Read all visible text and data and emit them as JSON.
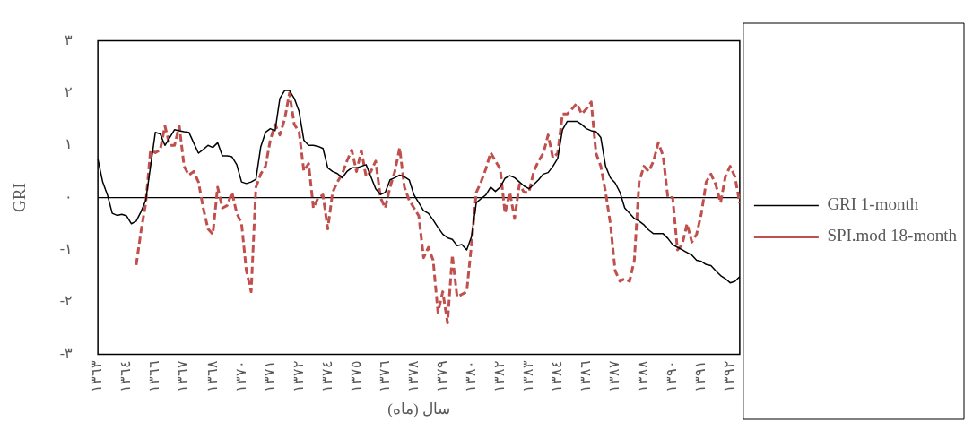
{
  "chart_data": {
    "type": "line",
    "xlabel": "سال (ماه)",
    "ylabel": "GRI",
    "categories": [
      "١٣٦٣",
      null,
      null,
      null,
      null,
      null,
      "١٣٦٤",
      null,
      null,
      null,
      null,
      null,
      "١٣٦٦",
      null,
      null,
      null,
      null,
      null,
      "١٣٦٧",
      null,
      null,
      null,
      null,
      null,
      "١٣٦٨",
      null,
      null,
      null,
      null,
      null,
      "١٣٧٠",
      null,
      null,
      null,
      null,
      null,
      "١٣٧١",
      null,
      null,
      null,
      null,
      null,
      "١٣٧٢",
      null,
      null,
      null,
      null,
      null,
      "١٣٧٤",
      null,
      null,
      null,
      null,
      null,
      "١٣٧٥",
      null,
      null,
      null,
      null,
      null,
      "١٣٧٦",
      null,
      null,
      null,
      null,
      null,
      "١٣٧٨",
      null,
      null,
      null,
      null,
      null,
      "١٣٧٩",
      null,
      null,
      null,
      null,
      null,
      "١٣٨٠",
      null,
      null,
      null,
      null,
      null,
      "١٣٨٢",
      null,
      null,
      null,
      null,
      null,
      "١٣٨٣",
      null,
      null,
      null,
      null,
      null,
      "١٣٨٤",
      null,
      null,
      null,
      null,
      null,
      "١٣٨٦",
      null,
      null,
      null,
      null,
      null,
      "١٣٨٧",
      null,
      null,
      null,
      null,
      null,
      "١٣٨٨",
      null,
      null,
      null,
      null,
      null,
      "١٣٩٠",
      null,
      null,
      null,
      null,
      null,
      "١٣٩١",
      null,
      null,
      null,
      null,
      null,
      "١٣٩٢",
      null,
      null
    ],
    "series": [
      {
        "name": "GRI 1-month",
        "color": "#000000",
        "line_style": "solid",
        "values": [
          0.74,
          0.3,
          0.05,
          -0.3,
          -0.34,
          -0.32,
          -0.35,
          -0.5,
          -0.45,
          -0.27,
          -0.05,
          0.6,
          1.25,
          1.22,
          1.0,
          1.15,
          1.3,
          1.28,
          1.26,
          1.25,
          1.05,
          0.85,
          0.92,
          1.0,
          0.96,
          1.05,
          0.8,
          0.8,
          0.78,
          0.63,
          0.3,
          0.27,
          0.3,
          0.35,
          0.97,
          1.25,
          1.32,
          1.28,
          1.9,
          2.05,
          2.05,
          1.9,
          1.65,
          1.1,
          1.0,
          1.0,
          0.98,
          0.94,
          0.57,
          0.5,
          0.46,
          0.38,
          0.5,
          0.57,
          0.57,
          0.6,
          0.63,
          0.4,
          0.17,
          0.06,
          0.1,
          0.34,
          0.38,
          0.43,
          0.4,
          0.34,
          0.05,
          -0.1,
          -0.25,
          -0.3,
          -0.43,
          -0.57,
          -0.7,
          -0.77,
          -0.8,
          -0.92,
          -0.9,
          -1.0,
          -0.75,
          -0.1,
          -0.02,
          0.05,
          0.2,
          0.12,
          0.2,
          0.37,
          0.42,
          0.38,
          0.3,
          0.22,
          0.17,
          0.25,
          0.34,
          0.45,
          0.48,
          0.6,
          0.75,
          1.3,
          1.46,
          1.46,
          1.46,
          1.4,
          1.32,
          1.28,
          1.26,
          1.15,
          0.6,
          0.38,
          0.28,
          0.1,
          -0.2,
          -0.3,
          -0.4,
          -0.45,
          -0.52,
          -0.62,
          -0.69,
          -0.69,
          -0.69,
          -0.78,
          -0.9,
          -0.95,
          -1.0,
          -1.05,
          -1.1,
          -1.2,
          -1.22,
          -1.28,
          -1.3,
          -1.4,
          -1.49,
          -1.55,
          -1.63,
          -1.6,
          -1.51
        ]
      },
      {
        "name": "SPI.mod 18-month",
        "color": "#c0504d",
        "line_style": "dashed",
        "values": [
          null,
          null,
          null,
          null,
          null,
          null,
          null,
          null,
          -1.29,
          -0.65,
          -0.1,
          0.91,
          0.86,
          0.91,
          1.37,
          1.0,
          1.0,
          1.37,
          0.6,
          0.43,
          0.5,
          0.3,
          -0.2,
          -0.6,
          -0.7,
          0.2,
          -0.2,
          -0.15,
          0.1,
          -0.3,
          -0.5,
          -1.4,
          -1.8,
          0.2,
          0.45,
          0.6,
          1.1,
          1.4,
          1.2,
          1.5,
          2.0,
          1.4,
          1.26,
          0.51,
          0.65,
          -0.2,
          0.0,
          0.05,
          -0.6,
          0.1,
          0.3,
          0.45,
          0.7,
          0.91,
          0.5,
          0.9,
          0.4,
          0.5,
          0.7,
          0.0,
          -0.2,
          0.2,
          0.5,
          0.95,
          0.2,
          -0.05,
          -0.2,
          -0.35,
          -1.15,
          -0.95,
          -1.2,
          -2.2,
          -1.8,
          -2.4,
          -1.1,
          -1.9,
          -1.85,
          -1.8,
          -0.9,
          0.1,
          0.3,
          0.55,
          0.86,
          0.7,
          0.55,
          -0.3,
          0.1,
          -0.4,
          0.25,
          0.1,
          0.1,
          0.5,
          0.7,
          0.85,
          1.2,
          0.76,
          0.85,
          1.6,
          1.6,
          1.7,
          1.8,
          1.6,
          1.7,
          1.83,
          0.85,
          0.6,
          0.1,
          -0.5,
          -1.4,
          -1.6,
          -1.55,
          -1.6,
          -1.2,
          0.3,
          0.6,
          0.5,
          0.7,
          1.05,
          0.8,
          0.0,
          0.0,
          -1.0,
          -0.9,
          -0.5,
          -0.85,
          -0.7,
          -0.3,
          0.3,
          0.45,
          0.25,
          -0.1,
          0.4,
          0.6,
          0.4,
          -0.11
        ]
      }
    ],
    "ylim": [
      -3,
      3
    ],
    "yticks": [
      {
        "value": -3,
        "label": "-٣"
      },
      {
        "value": -2,
        "label": "-٢"
      },
      {
        "value": -1,
        "label": "-١"
      },
      {
        "value": 0,
        "label": "٠"
      },
      {
        "value": 1,
        "label": "١"
      },
      {
        "value": 2,
        "label": "٢"
      },
      {
        "value": 3,
        "label": "٣"
      }
    ],
    "ref_lines": [
      {
        "axis": "y",
        "value": 0,
        "color": "#000000"
      }
    ],
    "grid": false,
    "legend": "right",
    "marker": "none"
  }
}
